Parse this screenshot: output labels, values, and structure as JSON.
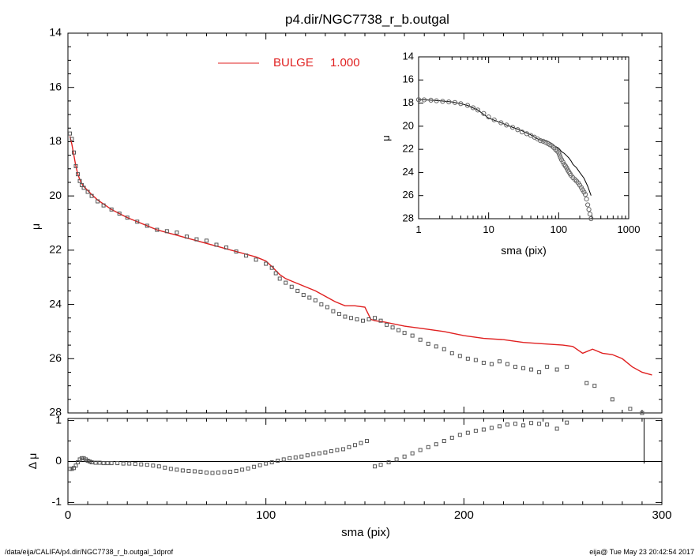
{
  "title": "p4.dir/NGC7738_r_b.outgal",
  "footer": {
    "left": "/data/eija/CALIFA/p4.dir/NGC7738_r_b.outgal_1dprof",
    "right": "eija@  Tue May 23 20:42:54 2017"
  },
  "colors": {
    "model": "#e02020",
    "observed": "#555555",
    "axis": "#000000"
  },
  "chart_data": [
    {
      "id": "main",
      "type": "scatter",
      "ylabel": "μ",
      "ylim": [
        28,
        14
      ],
      "y_inverted": true,
      "yticks": [
        14,
        16,
        18,
        20,
        22,
        24,
        26,
        28
      ],
      "xlim": [
        0,
        300
      ],
      "legend": {
        "label": "BULGE",
        "value": "1.000",
        "placement": "top-center"
      },
      "series": [
        {
          "name": "BULGE",
          "kind": "line",
          "x": [
            1,
            2,
            3,
            4,
            5,
            6,
            7,
            8,
            10,
            12,
            15,
            18,
            22,
            26,
            30,
            35,
            40,
            45,
            50,
            55,
            60,
            65,
            70,
            75,
            80,
            85,
            90,
            95,
            100,
            103,
            105,
            107,
            110,
            115,
            120,
            125,
            130,
            135,
            140,
            145,
            150,
            153,
            155,
            160,
            170,
            180,
            190,
            200,
            210,
            220,
            230,
            240,
            250,
            255,
            260,
            265,
            270,
            275,
            280,
            285,
            290,
            295
          ],
          "y": [
            17.8,
            18.1,
            18.5,
            18.9,
            19.2,
            19.4,
            19.55,
            19.65,
            19.8,
            19.95,
            20.15,
            20.3,
            20.5,
            20.65,
            20.8,
            20.95,
            21.1,
            21.25,
            21.35,
            21.45,
            21.55,
            21.65,
            21.75,
            21.85,
            21.95,
            22.05,
            22.15,
            22.25,
            22.4,
            22.6,
            22.75,
            22.9,
            23.05,
            23.2,
            23.35,
            23.5,
            23.7,
            23.9,
            24.05,
            24.05,
            24.1,
            24.55,
            24.6,
            24.65,
            24.8,
            24.9,
            25.0,
            25.15,
            25.25,
            25.3,
            25.4,
            25.45,
            25.5,
            25.55,
            25.8,
            25.65,
            25.8,
            25.85,
            26.0,
            26.3,
            26.5,
            26.6
          ]
        },
        {
          "name": "",
          "kind": "markers",
          "x": [
            1,
            2,
            3,
            4,
            5,
            6,
            7,
            8,
            10,
            12,
            15,
            18,
            22,
            26,
            30,
            35,
            40,
            45,
            50,
            55,
            60,
            65,
            70,
            75,
            80,
            85,
            90,
            95,
            100,
            103,
            105,
            107,
            110,
            113,
            116,
            119,
            122,
            125,
            128,
            131,
            134,
            137,
            140,
            143,
            146,
            149,
            152,
            155,
            158,
            161,
            164,
            167,
            170,
            174,
            178,
            182,
            186,
            190,
            194,
            198,
            202,
            206,
            210,
            214,
            218,
            222,
            226,
            230,
            234,
            238,
            242,
            247,
            252,
            262,
            266,
            275,
            284,
            290,
            293
          ],
          "y": [
            17.7,
            17.9,
            18.4,
            18.9,
            19.2,
            19.45,
            19.6,
            19.7,
            19.85,
            20.0,
            20.2,
            20.35,
            20.5,
            20.65,
            20.8,
            20.95,
            21.1,
            21.25,
            21.3,
            21.35,
            21.5,
            21.6,
            21.65,
            21.8,
            21.9,
            22.05,
            22.2,
            22.35,
            22.5,
            22.65,
            22.85,
            23.05,
            23.2,
            23.35,
            23.5,
            23.65,
            23.75,
            23.85,
            24.0,
            24.1,
            24.25,
            24.35,
            24.45,
            24.5,
            24.55,
            24.6,
            24.55,
            24.5,
            24.6,
            24.75,
            24.85,
            24.95,
            25.05,
            25.15,
            25.3,
            25.45,
            25.55,
            25.65,
            25.8,
            25.9,
            26.0,
            26.05,
            26.15,
            26.2,
            26.1,
            26.2,
            26.3,
            26.35,
            26.4,
            26.5,
            26.3,
            26.4,
            26.3,
            26.9,
            27.0,
            27.5,
            27.85,
            28.0,
            28.1
          ]
        }
      ]
    },
    {
      "id": "residual",
      "type": "scatter",
      "ylabel": "Δ μ",
      "xlabel": "sma (pix)",
      "xlim": [
        0,
        300
      ],
      "xticks": [
        0,
        100,
        200,
        300
      ],
      "ylim": [
        -1.05,
        1.05
      ],
      "yticks": [
        -1,
        0,
        1
      ],
      "zero_line": true,
      "series": [
        {
          "name": "",
          "kind": "markers",
          "x": [
            1,
            2,
            3,
            4,
            5,
            6,
            7,
            8,
            9,
            10,
            11,
            12,
            14,
            16,
            18,
            20,
            22,
            25,
            28,
            31,
            34,
            37,
            40,
            43,
            46,
            49,
            52,
            55,
            58,
            61,
            64,
            67,
            70,
            73,
            76,
            79,
            82,
            85,
            88,
            91,
            94,
            97,
            100,
            103,
            106,
            109,
            112,
            115,
            118,
            121,
            124,
            127,
            130,
            133,
            136,
            139,
            142,
            145,
            148,
            151,
            155,
            158,
            162,
            166,
            170,
            174,
            178,
            182,
            186,
            190,
            194,
            198,
            202,
            206,
            210,
            214,
            218,
            222,
            226,
            230,
            234,
            238,
            242,
            247,
            252
          ],
          "y": [
            -0.18,
            -0.18,
            -0.16,
            -0.1,
            -0.02,
            0.05,
            0.08,
            0.08,
            0.05,
            0.02,
            0.0,
            -0.02,
            -0.03,
            -0.03,
            -0.04,
            -0.04,
            -0.04,
            -0.04,
            -0.05,
            -0.05,
            -0.06,
            -0.07,
            -0.08,
            -0.1,
            -0.12,
            -0.15,
            -0.18,
            -0.2,
            -0.22,
            -0.23,
            -0.24,
            -0.25,
            -0.27,
            -0.28,
            -0.27,
            -0.26,
            -0.25,
            -0.23,
            -0.2,
            -0.17,
            -0.13,
            -0.09,
            -0.05,
            -0.02,
            0.02,
            0.05,
            0.08,
            0.1,
            0.12,
            0.15,
            0.18,
            0.2,
            0.22,
            0.25,
            0.28,
            0.3,
            0.35,
            0.4,
            0.45,
            0.5,
            -0.12,
            -0.08,
            -0.02,
            0.05,
            0.12,
            0.2,
            0.28,
            0.35,
            0.42,
            0.5,
            0.58,
            0.65,
            0.7,
            0.75,
            0.78,
            0.82,
            0.86,
            0.9,
            0.92,
            0.88,
            0.94,
            0.92,
            0.9,
            0.8,
            0.95
          ]
        }
      ],
      "annotations": [
        {
          "kind": "vline",
          "x": 291,
          "y_from": -0.05,
          "y_to": 1.05
        }
      ]
    },
    {
      "id": "inset",
      "type": "scatter",
      "xscale": "log",
      "xlim": [
        1,
        1000
      ],
      "xticks": [
        1,
        10,
        100,
        1000
      ],
      "ylim": [
        28,
        14
      ],
      "y_inverted": true,
      "yticks": [
        14,
        16,
        18,
        20,
        22,
        24,
        26,
        28
      ],
      "xlabel": "sma (pix)",
      "ylabel": "μ",
      "series": [
        {
          "name": "",
          "kind": "line",
          "x": [
            1,
            1.5,
            2,
            3,
            4,
            5,
            7,
            10,
            15,
            20,
            30,
            40,
            50,
            60,
            70,
            80,
            90,
            100,
            110,
            120,
            130,
            140,
            150,
            160,
            180,
            200,
            230,
            260,
            290
          ],
          "y": [
            17.7,
            17.75,
            17.8,
            17.9,
            18.05,
            18.2,
            18.6,
            19.3,
            19.7,
            20.0,
            20.4,
            20.75,
            21.1,
            21.25,
            21.3,
            21.5,
            21.75,
            21.9,
            22.2,
            22.35,
            22.55,
            22.75,
            23.0,
            23.3,
            23.6,
            24.0,
            24.5,
            25.2,
            26.0
          ]
        },
        {
          "name": "",
          "kind": "markers",
          "x": [
            1,
            1.2,
            1.5,
            1.8,
            2.2,
            2.7,
            3.3,
            4,
            5,
            6,
            7,
            8.5,
            10,
            12,
            15,
            18,
            22,
            26,
            30,
            35,
            40,
            45,
            50,
            55,
            60,
            65,
            70,
            75,
            80,
            85,
            90,
            95,
            100,
            103,
            106,
            110,
            115,
            120,
            125,
            130,
            135,
            140,
            145,
            150,
            160,
            170,
            180,
            190,
            200,
            210,
            220,
            230,
            240,
            250,
            260,
            270,
            280,
            290
          ],
          "y": [
            17.7,
            17.72,
            17.75,
            17.8,
            17.85,
            17.9,
            17.95,
            18.05,
            18.2,
            18.4,
            18.6,
            18.9,
            19.2,
            19.45,
            19.7,
            19.9,
            20.1,
            20.3,
            20.5,
            20.65,
            20.8,
            20.95,
            21.1,
            21.25,
            21.3,
            21.4,
            21.5,
            21.6,
            21.7,
            21.85,
            22.0,
            22.15,
            22.3,
            22.5,
            22.7,
            22.9,
            23.1,
            23.3,
            23.45,
            23.6,
            23.8,
            23.95,
            24.1,
            24.25,
            24.45,
            24.6,
            24.75,
            24.9,
            25.1,
            25.3,
            25.5,
            25.7,
            25.9,
            26.3,
            26.8,
            27.2,
            27.6,
            28.0
          ]
        }
      ]
    }
  ]
}
